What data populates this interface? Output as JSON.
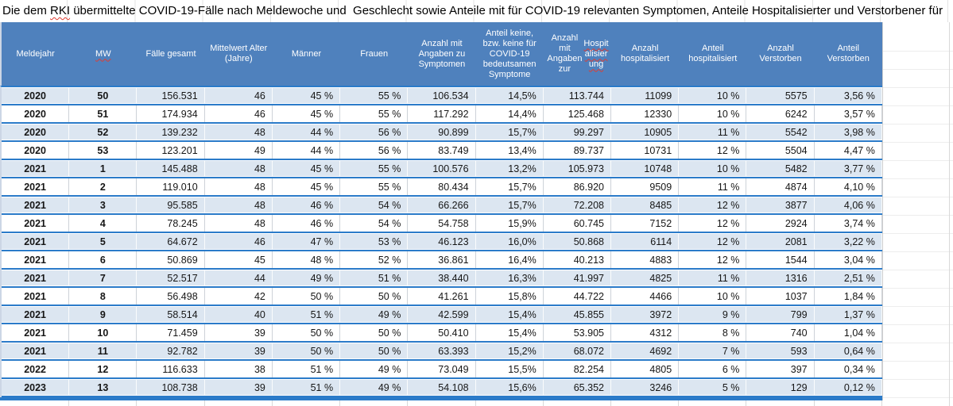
{
  "title": {
    "part1": "Die dem ",
    "rki_word": "RKI",
    "part2": " übermittelte COVID-19-Fälle nach Meldewoche und  Geschlecht sowie Anteile mit für COVID-19 relevanten Symptomen, Anteile Hospitalisierter und Verstorbener für"
  },
  "colors": {
    "header_bg": "#4f81bd",
    "banded_row_bg": "#dce6f1",
    "row_border_blue": "#2b7bc9",
    "spellcheck_red": "#e03c31"
  },
  "table": {
    "columns": [
      {
        "label": "Meldejahr"
      },
      {
        "label": "MW",
        "spell": true
      },
      {
        "label": "Fälle gesamt"
      },
      {
        "label": "Mittelwert Alter (Jahre)"
      },
      {
        "label": "Männer"
      },
      {
        "label": "Frauen"
      },
      {
        "label": "Anzahl mit Angaben zu Symptomen"
      },
      {
        "label": "Anteil keine, bzw. keine für COVID-19 bedeutsamen Symptome"
      },
      {
        "label": "Anzahl mit Angaben zur Hospitalisierung",
        "spell_part": "Hospitalisierung"
      },
      {
        "label": "Anzahl hospitalisiert"
      },
      {
        "label": "Anteil hospitalisiert"
      },
      {
        "label": "Anzahl Verstorben"
      },
      {
        "label": "Anteil Verstorben"
      }
    ],
    "rows": [
      [
        "2020",
        "50",
        "156.531",
        "46",
        "45 %",
        "55 %",
        "106.534",
        "14,5%",
        "113.744",
        "11099",
        "10 %",
        "5575",
        "3,56 %"
      ],
      [
        "2020",
        "51",
        "174.934",
        "46",
        "45 %",
        "55 %",
        "117.292",
        "14,4%",
        "125.468",
        "12330",
        "10 %",
        "6242",
        "3,57 %"
      ],
      [
        "2020",
        "52",
        "139.232",
        "48",
        "44 %",
        "56 %",
        "90.899",
        "15,7%",
        "99.297",
        "10905",
        "11 %",
        "5542",
        "3,98 %"
      ],
      [
        "2020",
        "53",
        "123.201",
        "49",
        "44 %",
        "56 %",
        "83.749",
        "13,4%",
        "89.737",
        "10731",
        "12 %",
        "5504",
        "4,47 %"
      ],
      [
        "2021",
        "1",
        "145.488",
        "48",
        "45 %",
        "55 %",
        "100.576",
        "13,2%",
        "105.973",
        "10748",
        "10 %",
        "5482",
        "3,77 %"
      ],
      [
        "2021",
        "2",
        "119.010",
        "48",
        "45 %",
        "55 %",
        "80.434",
        "15,7%",
        "86.920",
        "9509",
        "11 %",
        "4874",
        "4,10 %"
      ],
      [
        "2021",
        "3",
        "95.585",
        "48",
        "46 %",
        "54 %",
        "66.266",
        "15,7%",
        "72.208",
        "8485",
        "12 %",
        "3877",
        "4,06 %"
      ],
      [
        "2021",
        "4",
        "78.245",
        "48",
        "46 %",
        "54 %",
        "54.758",
        "15,9%",
        "60.745",
        "7152",
        "12 %",
        "2924",
        "3,74 %"
      ],
      [
        "2021",
        "5",
        "64.672",
        "46",
        "47 %",
        "53 %",
        "46.123",
        "16,0%",
        "50.868",
        "6114",
        "12 %",
        "2081",
        "3,22 %"
      ],
      [
        "2021",
        "6",
        "50.869",
        "45",
        "48 %",
        "52 %",
        "36.861",
        "16,4%",
        "40.213",
        "4883",
        "12 %",
        "1544",
        "3,04 %"
      ],
      [
        "2021",
        "7",
        "52.517",
        "44",
        "49 %",
        "51 %",
        "38.440",
        "16,3%",
        "41.997",
        "4825",
        "11 %",
        "1316",
        "2,51 %"
      ],
      [
        "2021",
        "8",
        "56.498",
        "42",
        "50 %",
        "50 %",
        "41.261",
        "15,8%",
        "44.722",
        "4466",
        "10 %",
        "1037",
        "1,84 %"
      ],
      [
        "2021",
        "9",
        "58.514",
        "40",
        "51 %",
        "49 %",
        "42.599",
        "15,4%",
        "45.855",
        "3972",
        "9 %",
        "799",
        "1,37 %"
      ],
      [
        "2021",
        "10",
        "71.459",
        "39",
        "50 %",
        "50 %",
        "50.410",
        "15,4%",
        "53.905",
        "4312",
        "8 %",
        "740",
        "1,04 %"
      ],
      [
        "2021",
        "11",
        "92.782",
        "39",
        "50 %",
        "50 %",
        "63.393",
        "15,2%",
        "68.072",
        "4692",
        "7 %",
        "593",
        "0,64 %"
      ],
      [
        "2022",
        "12",
        "116.633",
        "38",
        "51 %",
        "49 %",
        "73.049",
        "15,5%",
        "82.254",
        "4805",
        "6 %",
        "397",
        "0,34 %"
      ],
      [
        "2023",
        "13",
        "108.738",
        "39",
        "51 %",
        "49 %",
        "54.108",
        "15,6%",
        "65.352",
        "3246",
        "5 %",
        "129",
        "0,12 %"
      ]
    ]
  }
}
